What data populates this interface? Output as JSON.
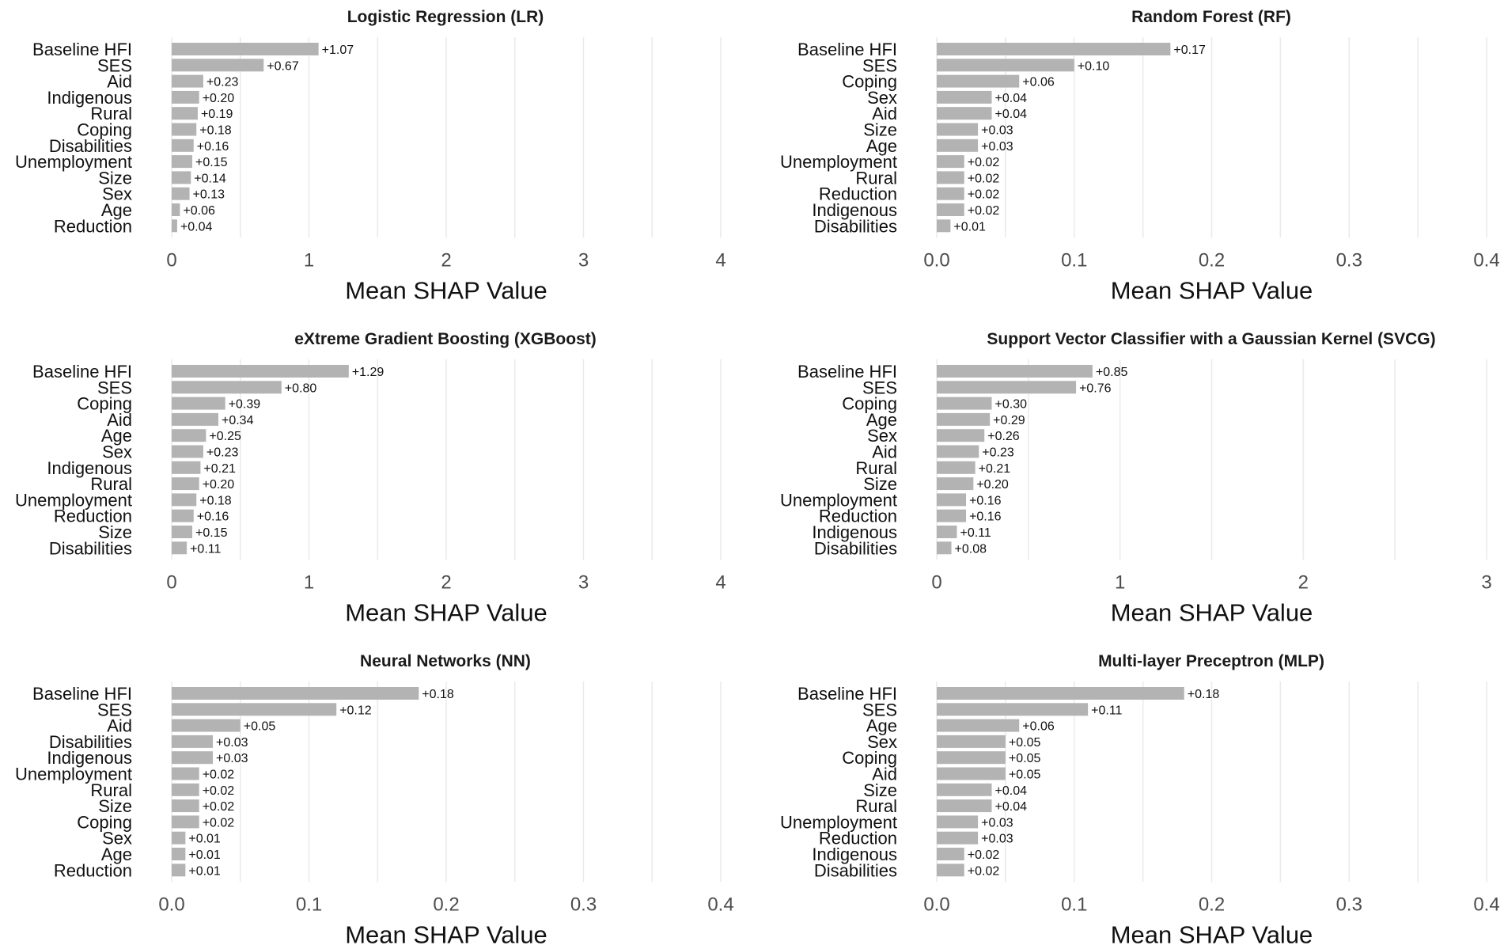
{
  "colors": {
    "bar": "#b3b3b3",
    "grid": "#ebebeb",
    "text": "#111111",
    "tick": "#4d4d4d"
  },
  "chart_data": [
    {
      "type": "bar",
      "orientation": "horizontal",
      "title": "Logistic Regression (LR)",
      "xlabel": "Mean SHAP Value",
      "xlim": [
        0,
        4
      ],
      "xticks": [
        0,
        1,
        2,
        3,
        4
      ],
      "xtick_labels": [
        "0",
        "1",
        "2",
        "3",
        "4"
      ],
      "grid": true,
      "categories": [
        "Baseline HFI",
        "SES",
        "Aid",
        "Indigenous",
        "Rural",
        "Coping",
        "Disabilities",
        "Unemployment",
        "Size",
        "Sex",
        "Age",
        "Reduction"
      ],
      "values": [
        1.07,
        0.67,
        0.23,
        0.2,
        0.19,
        0.18,
        0.16,
        0.15,
        0.14,
        0.13,
        0.06,
        0.04
      ],
      "value_labels": [
        "+1.07",
        "+0.67",
        "+0.23",
        "+0.20",
        "+0.19",
        "+0.18",
        "+0.16",
        "+0.15",
        "+0.14",
        "+0.13",
        "+0.06",
        "+0.04"
      ]
    },
    {
      "type": "bar",
      "orientation": "horizontal",
      "title": "Random Forest (RF)",
      "xlabel": "Mean SHAP Value",
      "xlim": [
        0,
        0.4
      ],
      "xticks": [
        0,
        0.1,
        0.2,
        0.3,
        0.4
      ],
      "xtick_labels": [
        "0.0",
        "0.1",
        "0.2",
        "0.3",
        "0.4"
      ],
      "grid": true,
      "categories": [
        "Baseline HFI",
        "SES",
        "Coping",
        "Sex",
        "Aid",
        "Size",
        "Age",
        "Unemployment",
        "Rural",
        "Reduction",
        "Indigenous",
        "Disabilities"
      ],
      "values": [
        0.17,
        0.1,
        0.06,
        0.04,
        0.04,
        0.03,
        0.03,
        0.02,
        0.02,
        0.02,
        0.02,
        0.01
      ],
      "value_labels": [
        "+0.17",
        "+0.10",
        "+0.06",
        "+0.04",
        "+0.04",
        "+0.03",
        "+0.03",
        "+0.02",
        "+0.02",
        "+0.02",
        "+0.02",
        "+0.01"
      ]
    },
    {
      "type": "bar",
      "orientation": "horizontal",
      "title": "eXtreme Gradient Boosting (XGBoost)",
      "xlabel": "Mean SHAP Value",
      "xlim": [
        0,
        4
      ],
      "xticks": [
        0,
        1,
        2,
        3,
        4
      ],
      "xtick_labels": [
        "0",
        "1",
        "2",
        "3",
        "4"
      ],
      "grid": true,
      "categories": [
        "Baseline HFI",
        "SES",
        "Coping",
        "Aid",
        "Age",
        "Sex",
        "Indigenous",
        "Rural",
        "Unemployment",
        "Reduction",
        "Size",
        "Disabilities"
      ],
      "values": [
        1.29,
        0.8,
        0.39,
        0.34,
        0.25,
        0.23,
        0.21,
        0.2,
        0.18,
        0.16,
        0.15,
        0.11
      ],
      "value_labels": [
        "+1.29",
        "+0.80",
        "+0.39",
        "+0.34",
        "+0.25",
        "+0.23",
        "+0.21",
        "+0.20",
        "+0.18",
        "+0.16",
        "+0.15",
        "+0.11"
      ]
    },
    {
      "type": "bar",
      "orientation": "horizontal",
      "title": "Support Vector Classifier with a Gaussian Kernel (SVCG)",
      "xlabel": "Mean SHAP Value",
      "xlim": [
        0,
        3
      ],
      "xticks": [
        0,
        1,
        2,
        3
      ],
      "xtick_labels": [
        "0",
        "1",
        "2",
        "3"
      ],
      "grid": true,
      "categories": [
        "Baseline HFI",
        "SES",
        "Coping",
        "Age",
        "Sex",
        "Aid",
        "Rural",
        "Size",
        "Unemployment",
        "Reduction",
        "Indigenous",
        "Disabilities"
      ],
      "values": [
        0.85,
        0.76,
        0.3,
        0.29,
        0.26,
        0.23,
        0.21,
        0.2,
        0.16,
        0.16,
        0.11,
        0.08
      ],
      "value_labels": [
        "+0.85",
        "+0.76",
        "+0.30",
        "+0.29",
        "+0.26",
        "+0.23",
        "+0.21",
        "+0.20",
        "+0.16",
        "+0.16",
        "+0.11",
        "+0.08"
      ]
    },
    {
      "type": "bar",
      "orientation": "horizontal",
      "title": "Neural Networks (NN)",
      "xlabel": "Mean SHAP Value",
      "xlim": [
        0,
        0.4
      ],
      "xticks": [
        0,
        0.1,
        0.2,
        0.3,
        0.4
      ],
      "xtick_labels": [
        "0.0",
        "0.1",
        "0.2",
        "0.3",
        "0.4"
      ],
      "grid": true,
      "categories": [
        "Baseline HFI",
        "SES",
        "Aid",
        "Disabilities",
        "Indigenous",
        "Unemployment",
        "Rural",
        "Size",
        "Coping",
        "Sex",
        "Age",
        "Reduction"
      ],
      "values": [
        0.18,
        0.12,
        0.05,
        0.03,
        0.03,
        0.02,
        0.02,
        0.02,
        0.02,
        0.01,
        0.01,
        0.01
      ],
      "value_labels": [
        "+0.18",
        "+0.12",
        "+0.05",
        "+0.03",
        "+0.03",
        "+0.02",
        "+0.02",
        "+0.02",
        "+0.02",
        "+0.01",
        "+0.01",
        "+0.01"
      ]
    },
    {
      "type": "bar",
      "orientation": "horizontal",
      "title": "Multi-layer Preceptron (MLP)",
      "xlabel": "Mean SHAP Value",
      "xlim": [
        0,
        0.4
      ],
      "xticks": [
        0,
        0.1,
        0.2,
        0.3,
        0.4
      ],
      "xtick_labels": [
        "0.0",
        "0.1",
        "0.2",
        "0.3",
        "0.4"
      ],
      "grid": true,
      "categories": [
        "Baseline HFI",
        "SES",
        "Age",
        "Sex",
        "Coping",
        "Aid",
        "Size",
        "Rural",
        "Unemployment",
        "Reduction",
        "Indigenous",
        "Disabilities"
      ],
      "values": [
        0.18,
        0.11,
        0.06,
        0.05,
        0.05,
        0.05,
        0.04,
        0.04,
        0.03,
        0.03,
        0.02,
        0.02
      ],
      "value_labels": [
        "+0.18",
        "+0.11",
        "+0.06",
        "+0.05",
        "+0.05",
        "+0.05",
        "+0.04",
        "+0.04",
        "+0.03",
        "+0.03",
        "+0.02",
        "+0.02"
      ]
    }
  ]
}
